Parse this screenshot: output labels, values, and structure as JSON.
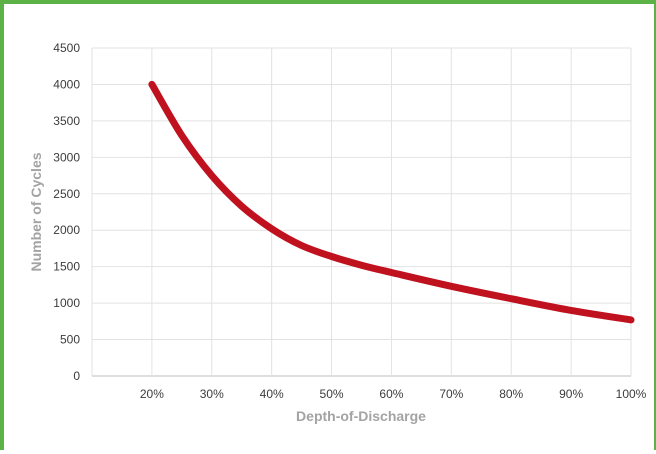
{
  "chart_data": {
    "type": "line",
    "title": "",
    "xlabel": "Depth-of-Discharge",
    "ylabel": "Number of Cycles",
    "x_tick_labels": [
      "20%",
      "30%",
      "40%",
      "50%",
      "60%",
      "70%",
      "80%",
      "90%",
      "100%"
    ],
    "y_tick_labels": [
      "0",
      "500",
      "1000",
      "1500",
      "2000",
      "2500",
      "3000",
      "3500",
      "4000",
      "4500"
    ],
    "xlim": [
      10,
      100
    ],
    "ylim": [
      0,
      4500
    ],
    "grid": true,
    "legend": "none",
    "series": [
      {
        "color": "#c0111f",
        "x": [
          20,
          25,
          30,
          35,
          40,
          45,
          50,
          55,
          60,
          70,
          80,
          90,
          100
        ],
        "y": [
          4000,
          3300,
          2750,
          2330,
          2020,
          1790,
          1640,
          1520,
          1420,
          1230,
          1060,
          900,
          770
        ]
      }
    ]
  }
}
